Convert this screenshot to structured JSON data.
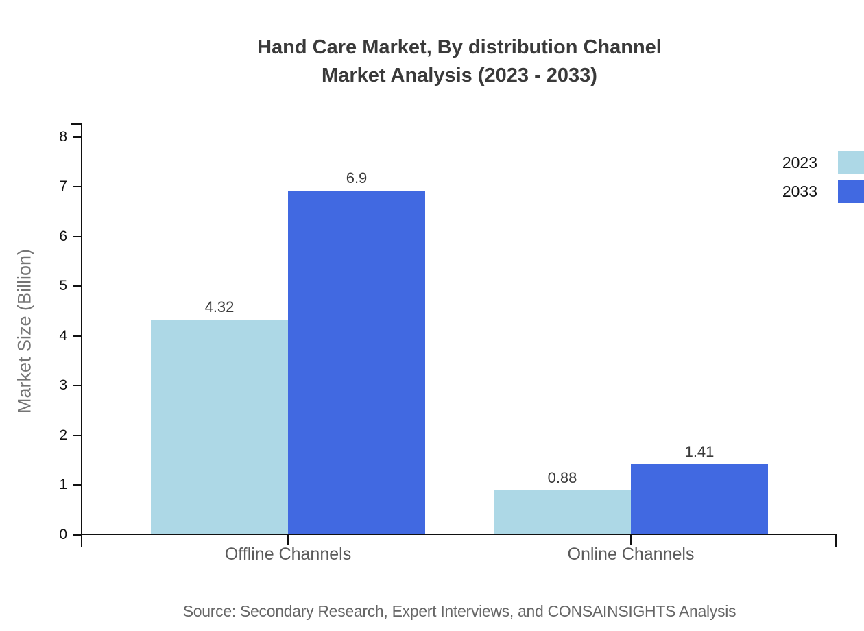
{
  "title": {
    "line1": "Hand Care Market, By distribution Channel",
    "line2": "Market Analysis (2023 - 2033)"
  },
  "source": "Source: Secondary Research, Expert Interviews, and CONSAINSIGHTS Analysis",
  "legend": [
    {
      "label": "2023",
      "color": "#ADD8E6"
    },
    {
      "label": "2033",
      "color": "#4169E1"
    }
  ],
  "colors": {
    "series_2023": "#ADD8E6",
    "series_2033": "#4169E1",
    "axis": "#111111",
    "title_text": "#3a3a3a",
    "muted_text": "#5a5a5a"
  },
  "chart_data": {
    "type": "bar",
    "title": "Hand Care Market, By distribution Channel Market Analysis (2023 - 2033)",
    "categories": [
      "Offline Channels",
      "Online Channels"
    ],
    "series": [
      {
        "name": "2023",
        "color": "#ADD8E6",
        "values": [
          4.32,
          0.88
        ]
      },
      {
        "name": "2033",
        "color": "#4169E1",
        "values": [
          6.9,
          1.41
        ]
      }
    ],
    "xlabel": "",
    "ylabel": "Market Size (Billion)",
    "ylim": [
      0,
      8.27
    ],
    "yticks": [
      0,
      1,
      2,
      3,
      4,
      5,
      6,
      7,
      8
    ],
    "grid": false,
    "legend_position": "top-right",
    "value_labels_shown": true
  }
}
